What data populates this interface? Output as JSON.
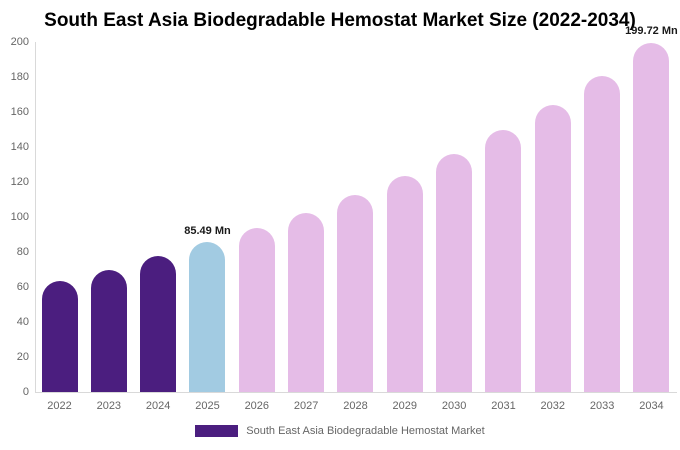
{
  "title": "South East Asia Biodegradable Hemostat Market Size (2022-2034)",
  "colors": {
    "bar_historical": "#4B1E7F",
    "bar_current": "#A2CBE2",
    "bar_forecast": "#E5BCE7",
    "axis_line": "#d9d9d9",
    "tick_text": "#666666",
    "annotation_text": "#1a1a1a",
    "legend_text": "#666666"
  },
  "chart_data": {
    "type": "bar",
    "title": "South East Asia Biodegradable Hemostat Market Size (2022-2034)",
    "categories": [
      "2022",
      "2023",
      "2024",
      "2025",
      "2026",
      "2027",
      "2028",
      "2029",
      "2030",
      "2031",
      "2032",
      "2033",
      "2034"
    ],
    "values": [
      63.5,
      70,
      78,
      85.49,
      93.5,
      102.5,
      112.5,
      123.5,
      136,
      149.5,
      164,
      180.5,
      199.72
    ],
    "unit": "Mn",
    "bar_color_roles": [
      "historical",
      "historical",
      "historical",
      "current",
      "forecast",
      "forecast",
      "forecast",
      "forecast",
      "forecast",
      "forecast",
      "forecast",
      "forecast",
      "forecast"
    ],
    "annotations": [
      {
        "category": "2025",
        "text": "85.49 Mn"
      },
      {
        "category": "2034",
        "text": "199.72 Mn"
      }
    ],
    "xlabel": "",
    "ylabel": "",
    "ylim": [
      0,
      200
    ],
    "yticks": [
      0,
      20,
      40,
      60,
      80,
      100,
      120,
      140,
      160,
      180,
      200
    ],
    "grid": false,
    "legend_position": "bottom",
    "legend": [
      {
        "label": "South East Asia Biodegradable Hemostat Market",
        "color_role": "historical"
      }
    ]
  }
}
